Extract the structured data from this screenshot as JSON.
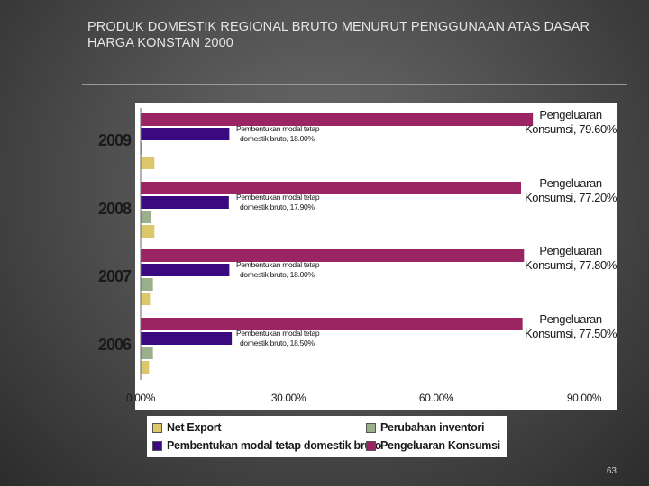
{
  "slide": {
    "title_line1": "PRODUK DOMESTIK REGIONAL BRUTO MENURUT PENGGUNAAN ATAS DASAR",
    "title_line2": "HARGA KONSTAN 2000",
    "page_number": "63"
  },
  "chart_data": {
    "type": "bar",
    "orientation": "horizontal",
    "categories": [
      "2009",
      "2008",
      "2007",
      "2006"
    ],
    "series": [
      {
        "name": "Pengeluaran Konsumsi",
        "color": "#9b2462",
        "values": [
          79.6,
          77.2,
          77.8,
          77.5
        ]
      },
      {
        "name": "Pembentukan modal tetap domestik bruto",
        "color": "#3b0a80",
        "values": [
          18.0,
          17.9,
          18.0,
          18.5
        ]
      },
      {
        "name": "Perubahan inventori",
        "color": "#9ab08a",
        "values": [
          0.3,
          2.2,
          2.5,
          2.5
        ]
      },
      {
        "name": "Net Export",
        "color": "#dcc86a",
        "values": [
          2.8,
          2.8,
          1.9,
          1.7
        ]
      }
    ],
    "xlim": [
      0,
      90
    ],
    "x_ticks": [
      "0.00%",
      "30.00%",
      "60.00%",
      "90.00%"
    ],
    "annotations": {
      "consumption": [
        {
          "line1": "Pengeluaran",
          "line2": "Konsumsi, 79.60%"
        },
        {
          "line1": "Pengeluaran",
          "line2": "Konsumsi, 77.20%"
        },
        {
          "line1": "Pengeluaran",
          "line2": "Konsumsi, 77.80%"
        },
        {
          "line1": "Pengeluaran",
          "line2": "Konsumsi, 77.50%"
        }
      ],
      "capital": [
        {
          "line1": "Pembentukan modal tetap",
          "line2": "domestik bruto, 18.00%"
        },
        {
          "line1": "Pembentukan modal tetap",
          "line2": "domestik bruto, 17.90%"
        },
        {
          "line1": "Pembentukan modal tetap",
          "line2": "domestik bruto, 18.00%"
        },
        {
          "line1": "Pembentukan modal tetap",
          "line2": "domestik bruto, 18.50%"
        }
      ]
    },
    "legend": {
      "position": "bottom",
      "items": [
        {
          "label": "Net Export",
          "color": "#dcc86a"
        },
        {
          "label": "Perubahan inventori",
          "color": "#9ab08a"
        },
        {
          "label": "Pembentukan modal tetap domestik bruto",
          "color": "#3b0a80"
        },
        {
          "label": "Pengeluaran Konsumsi",
          "color": "#9b2462"
        }
      ]
    },
    "grid": false
  }
}
